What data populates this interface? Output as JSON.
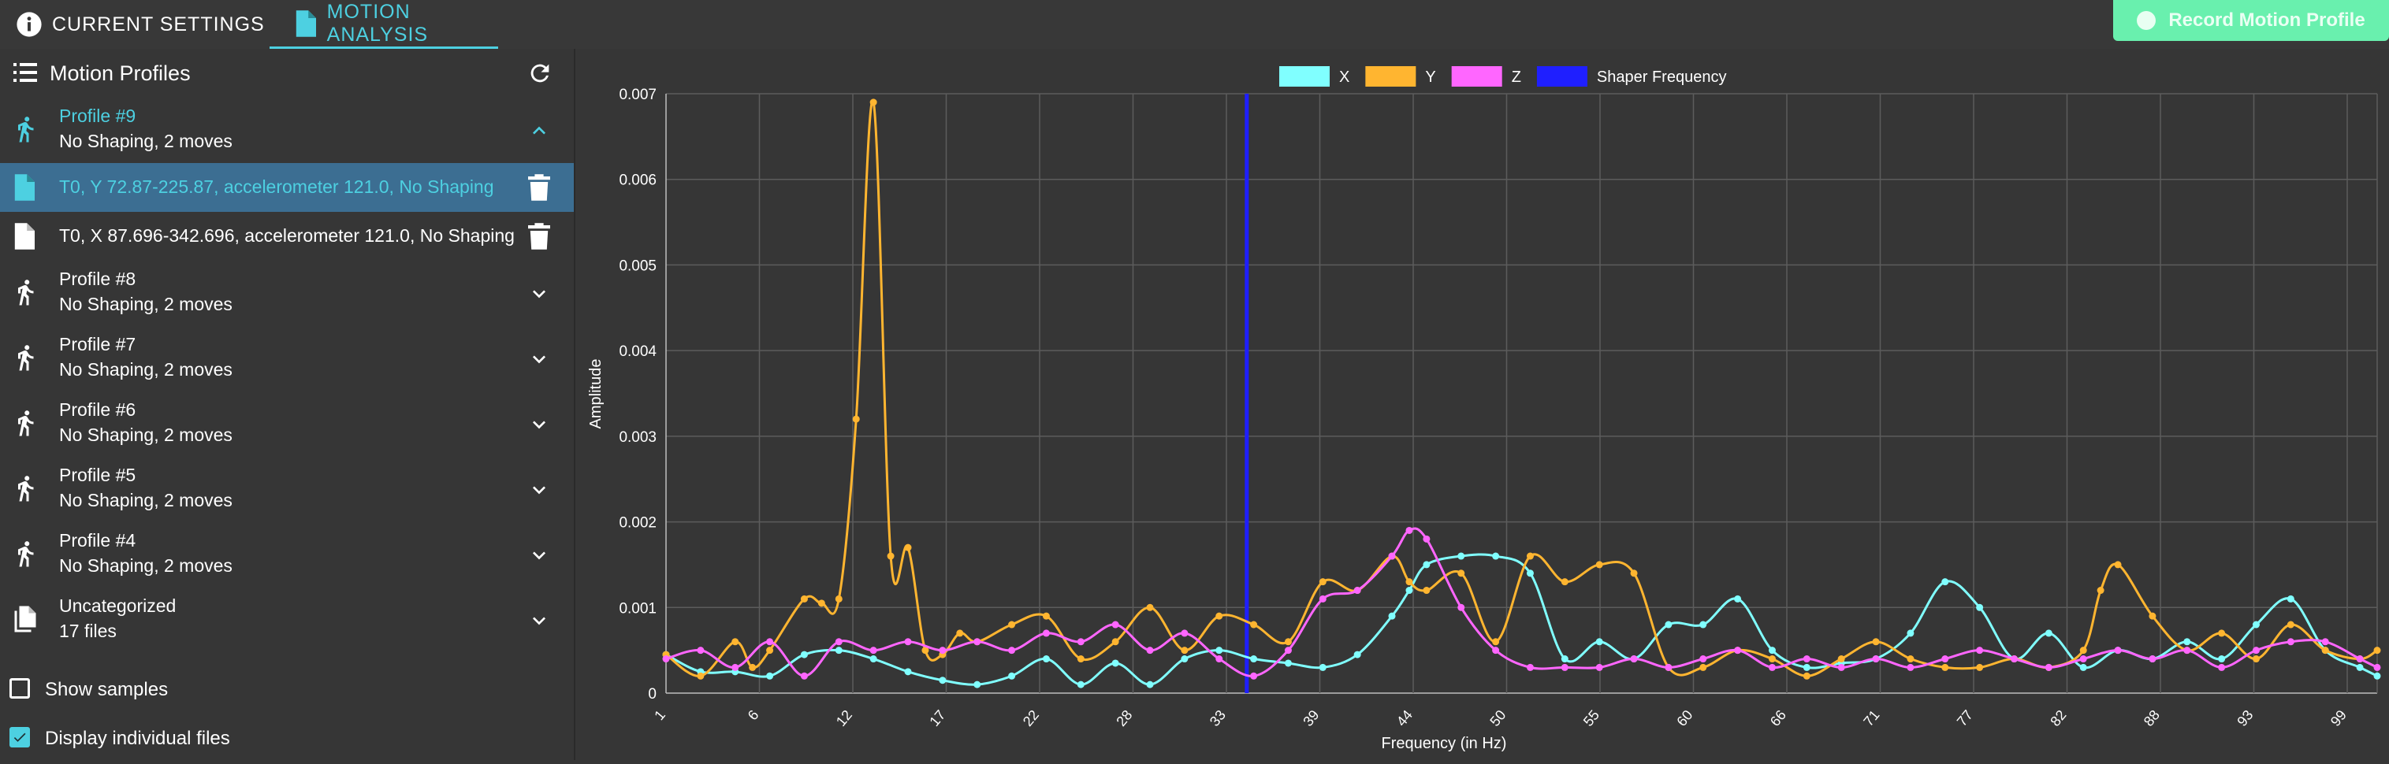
{
  "tabs": [
    {
      "label": "CURRENT SETTINGS",
      "icon": "info-icon"
    },
    {
      "label": "MOTION ANALYSIS",
      "icon": "file-icon"
    }
  ],
  "record_button": {
    "label": "Record Motion Profile",
    "icon": "record-dot-icon"
  },
  "sidebar": {
    "title": "Motion Profiles",
    "profiles": [
      {
        "title": "Profile #9",
        "subtitle": "No Shaping, 2 moves",
        "expanded": true,
        "files": [
          {
            "label": "T0, Y 72.87-225.87, accelerometer 121.0, No Shaping",
            "selected": true
          },
          {
            "label": "T0, X 87.696-342.696, accelerometer 121.0, No Shaping",
            "selected": false
          }
        ]
      },
      {
        "title": "Profile #8",
        "subtitle": "No Shaping, 2 moves",
        "expanded": false
      },
      {
        "title": "Profile #7",
        "subtitle": "No Shaping, 2 moves",
        "expanded": false
      },
      {
        "title": "Profile #6",
        "subtitle": "No Shaping, 2 moves",
        "expanded": false
      },
      {
        "title": "Profile #5",
        "subtitle": "No Shaping, 2 moves",
        "expanded": false
      },
      {
        "title": "Profile #4",
        "subtitle": "No Shaping, 2 moves",
        "expanded": false
      }
    ],
    "uncategorized": {
      "title": "Uncategorized",
      "subtitle": "17 files"
    },
    "options": [
      {
        "label": "Show samples",
        "checked": false
      },
      {
        "label": "Display individual files",
        "checked": true
      }
    ]
  },
  "chart_data": {
    "type": "line",
    "xlabel": "Frequency (in Hz)",
    "ylabel": "Amplitude",
    "xlim": [
      1,
      100
    ],
    "ylim": [
      0,
      0.007
    ],
    "x_ticks": [
      "1",
      "6",
      "12",
      "17",
      "22",
      "28",
      "33",
      "39",
      "44",
      "50",
      "55",
      "60",
      "66",
      "71",
      "77",
      "82",
      "88",
      "93",
      "99"
    ],
    "y_ticks": [
      "0",
      "0.001",
      "0.002",
      "0.003",
      "0.004",
      "0.005",
      "0.006",
      "0.007"
    ],
    "grid": true,
    "legend_position": "top",
    "shaper_frequency": 34.6,
    "series": [
      {
        "name": "X",
        "color": "#80ffff",
        "x": [
          1,
          3,
          5,
          7,
          9,
          11,
          13,
          15,
          17,
          19,
          21,
          23,
          25,
          27,
          29,
          31,
          33,
          35,
          37,
          39,
          41,
          43,
          44,
          45,
          47,
          49,
          51,
          53,
          55,
          57,
          59,
          61,
          63,
          65,
          67,
          69,
          71,
          73,
          75,
          77,
          79,
          81,
          83,
          85,
          87,
          89,
          91,
          93,
          95,
          97,
          99,
          100
        ],
        "y": [
          0.00045,
          0.00025,
          0.00025,
          0.0002,
          0.00045,
          0.0005,
          0.0004,
          0.00025,
          0.00015,
          0.0001,
          0.0002,
          0.0004,
          0.0001,
          0.00035,
          0.0001,
          0.0004,
          0.0005,
          0.0004,
          0.00035,
          0.0003,
          0.00045,
          0.0009,
          0.0012,
          0.0015,
          0.0016,
          0.0016,
          0.0014,
          0.0004,
          0.0006,
          0.0004,
          0.0008,
          0.0008,
          0.0011,
          0.0005,
          0.0003,
          0.00035,
          0.0004,
          0.0007,
          0.0013,
          0.001,
          0.0004,
          0.0007,
          0.0003,
          0.0005,
          0.0004,
          0.0006,
          0.0004,
          0.0008,
          0.0011,
          0.0005,
          0.0003,
          0.0002
        ]
      },
      {
        "name": "Y",
        "color": "#ffb530",
        "x": [
          1,
          3,
          5,
          6,
          7,
          9,
          10,
          11,
          12,
          13,
          14,
          15,
          16,
          17,
          18,
          19,
          21,
          23,
          25,
          27,
          29,
          31,
          33,
          35,
          37,
          39,
          41,
          43,
          44,
          45,
          47,
          49,
          51,
          53,
          55,
          57,
          59,
          61,
          63,
          65,
          67,
          69,
          71,
          73,
          75,
          77,
          79,
          81,
          83,
          84,
          85,
          87,
          89,
          91,
          93,
          95,
          97,
          99,
          100
        ],
        "y": [
          0.00045,
          0.0002,
          0.0006,
          0.0003,
          0.0005,
          0.0011,
          0.00105,
          0.0011,
          0.0032,
          0.0069,
          0.0016,
          0.0017,
          0.0005,
          0.00045,
          0.0007,
          0.0006,
          0.0008,
          0.0009,
          0.0004,
          0.0006,
          0.001,
          0.0005,
          0.0009,
          0.0008,
          0.0006,
          0.0013,
          0.0012,
          0.0016,
          0.0013,
          0.0012,
          0.0014,
          0.0006,
          0.0016,
          0.0013,
          0.0015,
          0.0014,
          0.0003,
          0.0003,
          0.0005,
          0.0004,
          0.0002,
          0.0004,
          0.0006,
          0.0004,
          0.0003,
          0.0003,
          0.0004,
          0.0003,
          0.0005,
          0.0012,
          0.0015,
          0.0009,
          0.0005,
          0.0007,
          0.0004,
          0.0008,
          0.0005,
          0.0004,
          0.0005
        ]
      },
      {
        "name": "Z",
        "color": "#ff66ff",
        "x": [
          1,
          3,
          5,
          7,
          9,
          11,
          13,
          15,
          17,
          19,
          21,
          23,
          25,
          27,
          29,
          31,
          33,
          35,
          37,
          39,
          41,
          43,
          44,
          45,
          47,
          49,
          51,
          53,
          55,
          57,
          59,
          61,
          63,
          65,
          67,
          69,
          71,
          73,
          75,
          77,
          79,
          81,
          83,
          85,
          87,
          89,
          91,
          93,
          95,
          97,
          99,
          100
        ],
        "y": [
          0.0004,
          0.0005,
          0.0003,
          0.0006,
          0.0002,
          0.0006,
          0.0005,
          0.0006,
          0.0005,
          0.0006,
          0.0005,
          0.0007,
          0.0006,
          0.0008,
          0.0005,
          0.0007,
          0.0004,
          0.0002,
          0.0005,
          0.0011,
          0.0012,
          0.0016,
          0.0019,
          0.0018,
          0.001,
          0.0005,
          0.0003,
          0.0003,
          0.0003,
          0.0004,
          0.0003,
          0.0004,
          0.0005,
          0.0003,
          0.0004,
          0.0003,
          0.0004,
          0.0003,
          0.0004,
          0.0005,
          0.0004,
          0.0003,
          0.0004,
          0.0005,
          0.0004,
          0.0005,
          0.0003,
          0.0005,
          0.0006,
          0.0006,
          0.0004,
          0.0003
        ]
      },
      {
        "name": "Shaper Frequency",
        "color": "#1f1fff"
      }
    ]
  }
}
